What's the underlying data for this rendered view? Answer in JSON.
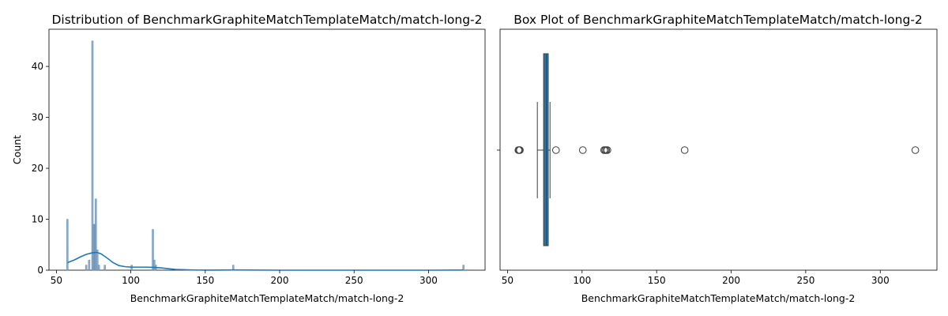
{
  "chart_data": [
    {
      "type": "histogram",
      "title": "Distribution of BenchmarkGraphiteMatchTemplateMatch/match-long-2",
      "xlabel": "BenchmarkGraphiteMatchTemplateMatch/match-long-2",
      "ylabel": "Count",
      "xlim": [
        45,
        338
      ],
      "ylim": [
        0,
        47.3
      ],
      "xticks": [
        50,
        100,
        150,
        200,
        250,
        300
      ],
      "yticks": [
        0,
        10,
        20,
        30,
        40
      ],
      "bar_color": "#7a9fbf",
      "kde_color": "#1f77b4",
      "bins": [
        {
          "x": 57.4,
          "count": 10
        },
        {
          "x": 70.0,
          "count": 1
        },
        {
          "x": 72.0,
          "count": 2
        },
        {
          "x": 74.2,
          "count": 45
        },
        {
          "x": 75.2,
          "count": 9
        },
        {
          "x": 75.8,
          "count": 9
        },
        {
          "x": 76.5,
          "count": 14
        },
        {
          "x": 77.5,
          "count": 4
        },
        {
          "x": 78.5,
          "count": 1
        },
        {
          "x": 82.5,
          "count": 1
        },
        {
          "x": 100.5,
          "count": 1
        },
        {
          "x": 114.8,
          "count": 8
        },
        {
          "x": 115.8,
          "count": 2
        },
        {
          "x": 116.8,
          "count": 1
        },
        {
          "x": 168.8,
          "count": 1
        },
        {
          "x": 323.5,
          "count": 1
        }
      ],
      "kde": [
        [
          57.5,
          1.5
        ],
        [
          62,
          2.0
        ],
        [
          66,
          2.6
        ],
        [
          70,
          3.1
        ],
        [
          74,
          3.4
        ],
        [
          77,
          3.5
        ],
        [
          80,
          3.2
        ],
        [
          84,
          2.4
        ],
        [
          88,
          1.5
        ],
        [
          92,
          0.9
        ],
        [
          96,
          0.7
        ],
        [
          100,
          0.6
        ],
        [
          105,
          0.6
        ],
        [
          110,
          0.6
        ],
        [
          115,
          0.55
        ],
        [
          120,
          0.45
        ],
        [
          125,
          0.3
        ],
        [
          130,
          0.15
        ],
        [
          140,
          0.05
        ],
        [
          150,
          0.01
        ],
        [
          170,
          0.05
        ],
        [
          200,
          0.0
        ],
        [
          250,
          0.0
        ],
        [
          300,
          0.0
        ],
        [
          323.5,
          0.03
        ]
      ]
    },
    {
      "type": "box",
      "title": "Box Plot of BenchmarkGraphiteMatchTemplateMatch/match-long-2",
      "xlabel": "BenchmarkGraphiteMatchTemplateMatch/match-long-2",
      "xlim": [
        45,
        338
      ],
      "xticks": [
        50,
        100,
        150,
        200,
        250,
        300
      ],
      "box_color": "#3274a1",
      "q1": 74.2,
      "median": 76.0,
      "q3": 77.3,
      "whisker_low": 70.0,
      "whisker_high": 78.5,
      "outliers": [
        57.3,
        57.8,
        58.3,
        82.5,
        100.5,
        114.8,
        115.5,
        116.2,
        117.0,
        168.8,
        323.5
      ]
    }
  ]
}
